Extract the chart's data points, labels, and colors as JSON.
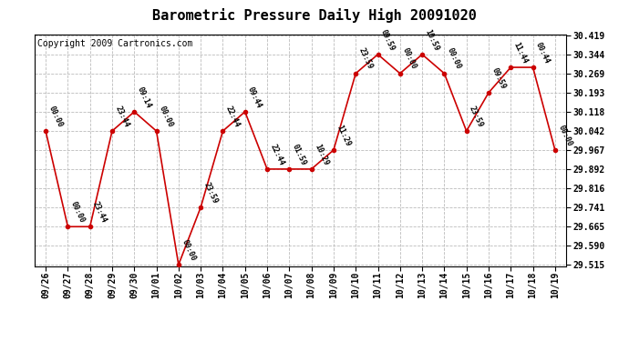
{
  "title": "Barometric Pressure Daily High 20091020",
  "copyright": "Copyright 2009 Cartronics.com",
  "x_labels": [
    "09/26",
    "09/27",
    "09/28",
    "09/29",
    "09/30",
    "10/01",
    "10/02",
    "10/03",
    "10/04",
    "10/05",
    "10/06",
    "10/07",
    "10/08",
    "10/09",
    "10/10",
    "10/11",
    "10/12",
    "10/13",
    "10/14",
    "10/15",
    "10/16",
    "10/17",
    "10/18",
    "10/19"
  ],
  "y_values": [
    30.042,
    29.665,
    29.665,
    30.042,
    30.118,
    30.042,
    29.515,
    29.741,
    30.042,
    30.118,
    29.892,
    29.892,
    29.892,
    29.967,
    30.269,
    30.344,
    30.269,
    30.344,
    30.269,
    30.042,
    30.193,
    30.293,
    30.293,
    29.967
  ],
  "time_labels": [
    "00:00",
    "00:00",
    "23:44",
    "23:44",
    "09:14",
    "00:00",
    "00:00",
    "23:59",
    "22:44",
    "09:44",
    "22:44",
    "01:59",
    "10:29",
    "11:29",
    "23:59",
    "09:59",
    "00:00",
    "10:59",
    "00:00",
    "23:59",
    "09:59",
    "11:44",
    "00:44",
    "00:00"
  ],
  "y_ticks": [
    29.515,
    29.59,
    29.665,
    29.741,
    29.816,
    29.892,
    29.967,
    30.042,
    30.118,
    30.193,
    30.269,
    30.344,
    30.419
  ],
  "y_min": 29.515,
  "y_max": 30.419,
  "line_color": "#cc0000",
  "marker_color": "#cc0000",
  "bg_color": "#ffffff",
  "plot_bg_color": "#ffffff",
  "grid_color": "#bbbbbb",
  "title_fontsize": 11,
  "tick_fontsize": 7,
  "annotation_fontsize": 6,
  "copyright_fontsize": 7
}
